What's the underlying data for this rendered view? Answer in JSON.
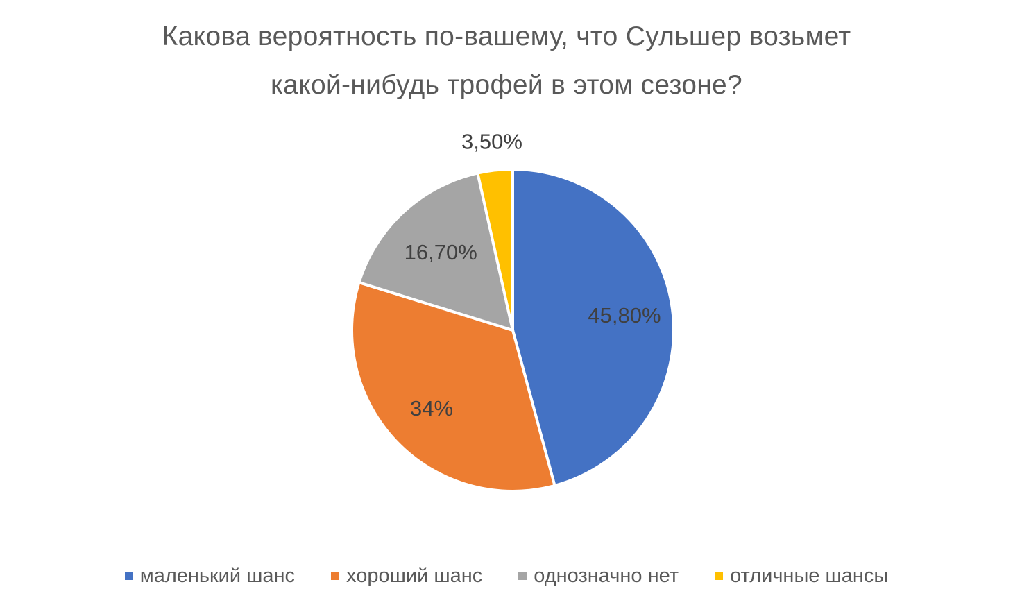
{
  "chart_data": {
    "type": "pie",
    "title": "Какова вероятность по-вашему, что Сульшер возьмет какой-нибудь трофей в этом сезоне?",
    "title_lines": [
      "Какова вероятность по-вашему, что Сульшер возьмет",
      "какой-нибудь трофей в этом сезоне?"
    ],
    "categories": [
      "маленький шанс",
      "хороший шанс",
      "однозначно нет",
      "отличные шансы"
    ],
    "values": [
      45.8,
      34,
      16.7,
      3.5
    ],
    "data_labels": [
      "45,80%",
      "34%",
      "16,70%",
      "3,50%"
    ],
    "colors": [
      "#4472C4",
      "#ED7D31",
      "#A5A5A5",
      "#FFC000"
    ],
    "start_angle": "12 o'clock",
    "direction": "clockwise",
    "legend_position": "bottom"
  }
}
